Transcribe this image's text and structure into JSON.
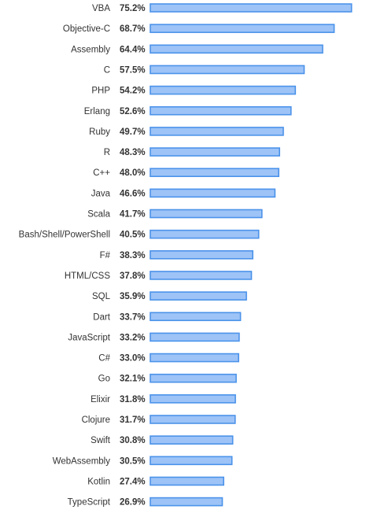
{
  "chart_data": {
    "type": "bar",
    "orientation": "horizontal",
    "categories": [
      "VBA",
      "Objective-C",
      "Assembly",
      "C",
      "PHP",
      "Erlang",
      "Ruby",
      "R",
      "C++",
      "Java",
      "Scala",
      "Bash/Shell/PowerShell",
      "F#",
      "HTML/CSS",
      "SQL",
      "Dart",
      "JavaScript",
      "C#",
      "Go",
      "Elixir",
      "Clojure",
      "Swift",
      "WebAssembly",
      "Kotlin",
      "TypeScript"
    ],
    "values": [
      75.2,
      68.7,
      64.4,
      57.5,
      54.2,
      52.6,
      49.7,
      48.3,
      48.0,
      46.6,
      41.7,
      40.5,
      38.3,
      37.8,
      35.9,
      33.7,
      33.2,
      33.0,
      32.1,
      31.8,
      31.7,
      30.8,
      30.5,
      27.4,
      26.9
    ],
    "value_labels": [
      "75.2%",
      "68.7%",
      "64.4%",
      "57.5%",
      "54.2%",
      "52.6%",
      "49.7%",
      "48.3%",
      "48.0%",
      "46.6%",
      "41.7%",
      "40.5%",
      "38.3%",
      "37.8%",
      "35.9%",
      "33.7%",
      "33.2%",
      "33.0%",
      "32.1%",
      "31.8%",
      "31.7%",
      "30.8%",
      "30.5%",
      "27.4%",
      "26.9%"
    ],
    "unit": "%",
    "grid": false,
    "legend": "none",
    "colors": {
      "bar_fill": "#9dc3f7",
      "bar_stroke": "#4c93ea",
      "text": "#333333"
    }
  }
}
